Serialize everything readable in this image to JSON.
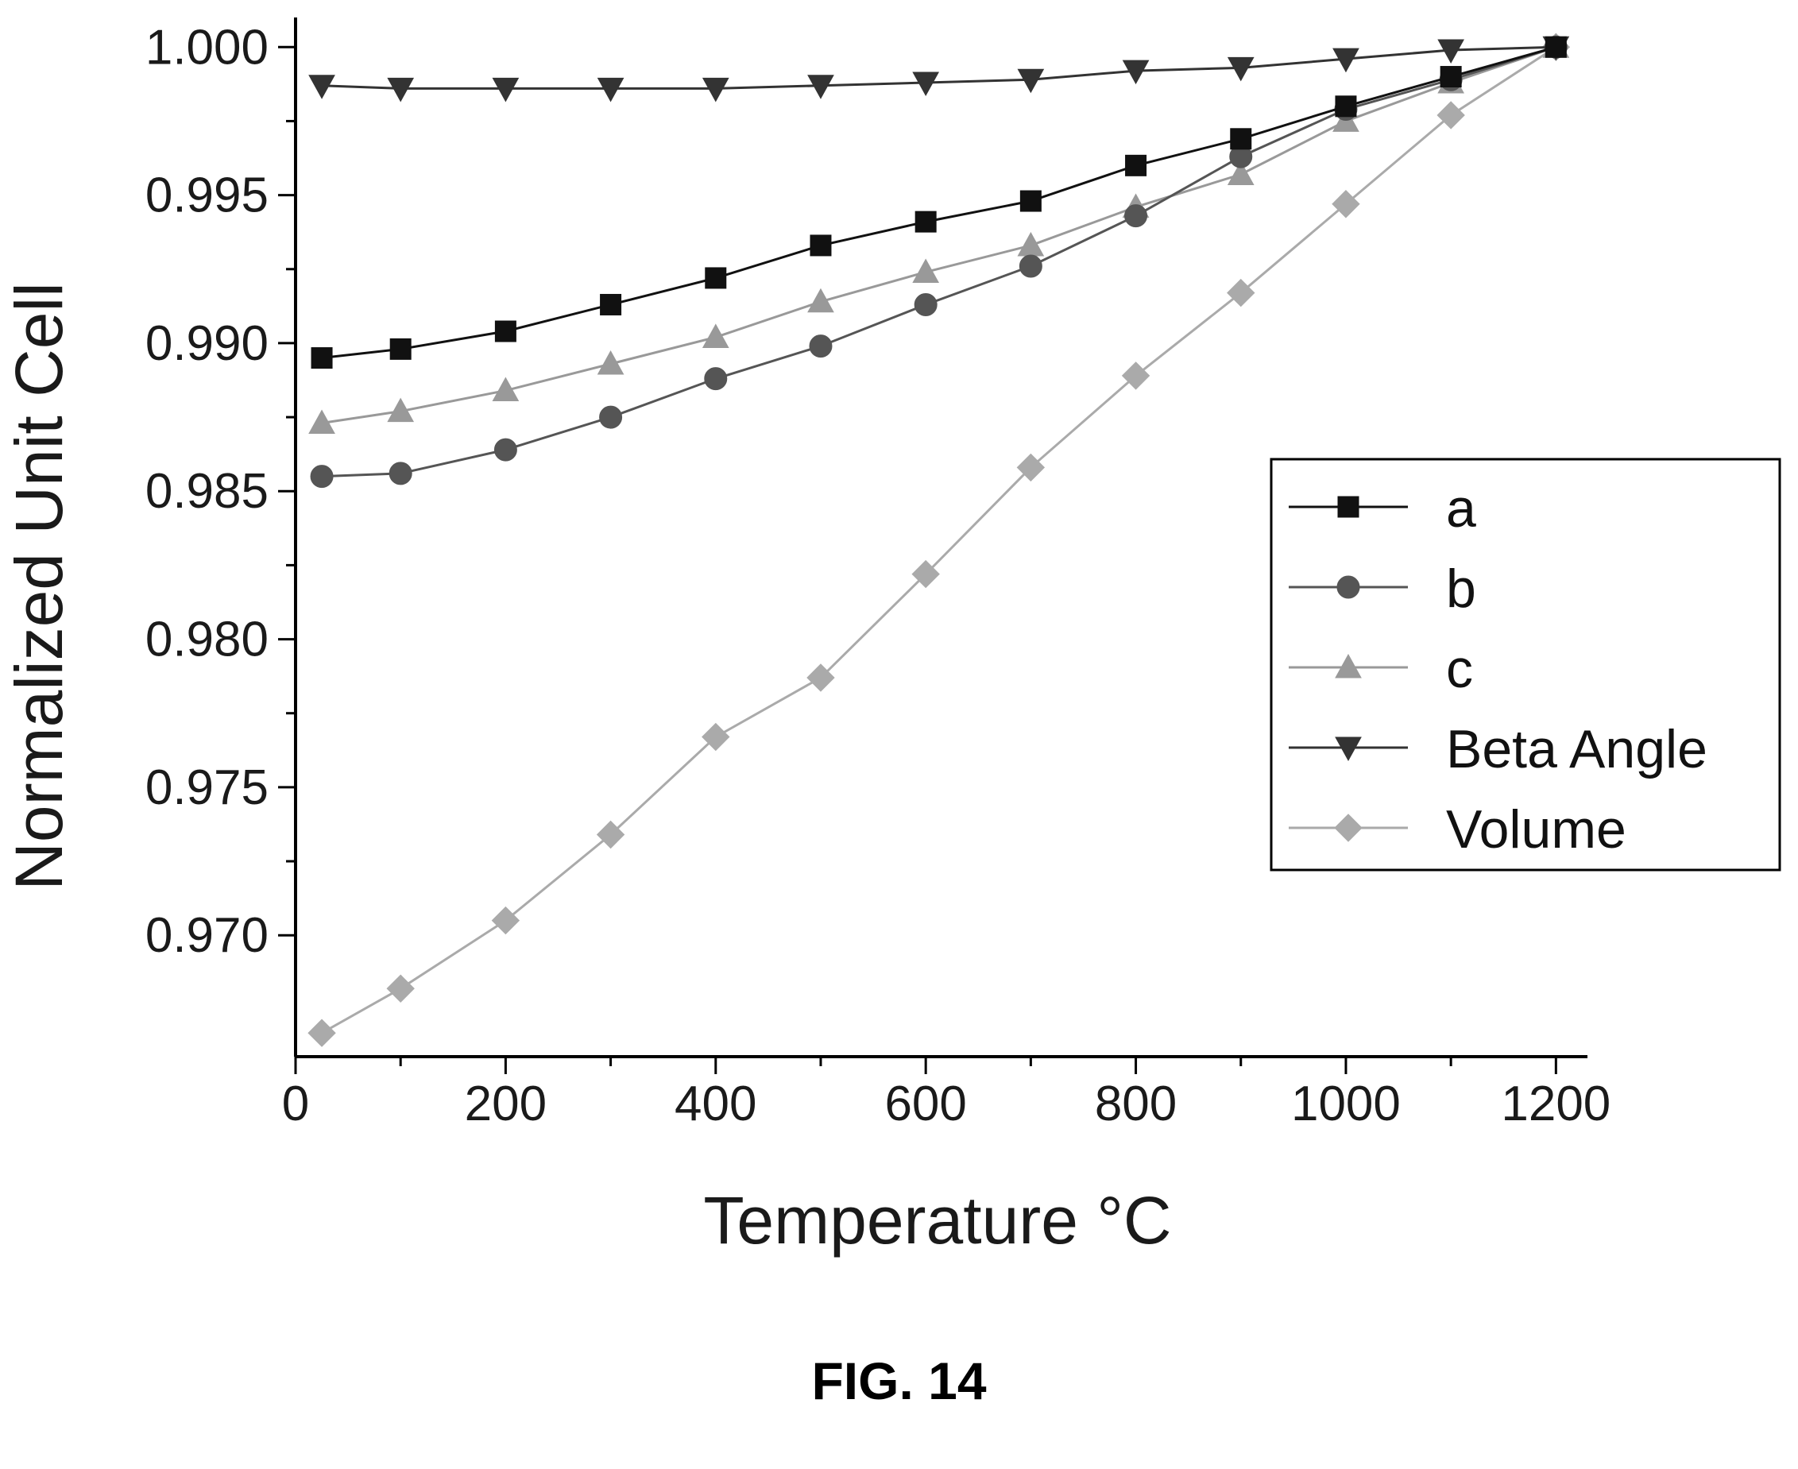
{
  "chart_data": {
    "type": "line",
    "title": "",
    "xlabel": "Temperature °C",
    "ylabel": "Normalized Unit Cell",
    "xlim": [
      0,
      1230
    ],
    "ylim": [
      0.9659,
      1.001
    ],
    "xticks": [
      0,
      200,
      400,
      600,
      800,
      1000,
      1200
    ],
    "yticks": [
      0.97,
      0.975,
      0.98,
      0.985,
      0.99,
      0.995,
      1.0
    ],
    "ytick_labels": [
      "0.970",
      "0.975",
      "0.980",
      "0.985",
      "0.990",
      "0.995",
      "1.000"
    ],
    "grid": false,
    "legend_position": "right",
    "x": [
      25,
      100,
      200,
      300,
      400,
      500,
      600,
      700,
      800,
      900,
      1000,
      1100,
      1200
    ],
    "series": [
      {
        "name": "a",
        "marker": "square",
        "color": "#111111",
        "values": [
          0.9895,
          0.9898,
          0.9904,
          0.9913,
          0.9922,
          0.9933,
          0.9941,
          0.9948,
          0.996,
          0.9969,
          0.998,
          0.999,
          1.0
        ]
      },
      {
        "name": "b",
        "marker": "circle",
        "color": "#555555",
        "values": [
          0.9855,
          0.9856,
          0.9864,
          0.9875,
          0.9888,
          0.9899,
          0.9913,
          0.9926,
          0.9943,
          0.9963,
          0.9979,
          0.9989,
          1.0
        ]
      },
      {
        "name": "c",
        "marker": "triangle-up",
        "color": "#999999",
        "values": [
          0.9873,
          0.9877,
          0.9884,
          0.9893,
          0.9902,
          0.9914,
          0.9924,
          0.9933,
          0.9946,
          0.9957,
          0.9975,
          0.9988,
          1.0
        ]
      },
      {
        "name": "Beta Angle",
        "marker": "triangle-down",
        "color": "#333333",
        "values": [
          0.9987,
          0.9986,
          0.9986,
          0.9986,
          0.9986,
          0.9987,
          0.9988,
          0.9989,
          0.9992,
          0.9993,
          0.9996,
          0.9999,
          1.0
        ]
      },
      {
        "name": "Volume",
        "marker": "diamond",
        "color": "#aaaaaa",
        "values": [
          0.9667,
          0.9682,
          0.9705,
          0.9734,
          0.9767,
          0.9787,
          0.9822,
          0.9858,
          0.9889,
          0.9917,
          0.9947,
          0.9977,
          1.0
        ]
      }
    ]
  },
  "caption": "FIG. 14"
}
